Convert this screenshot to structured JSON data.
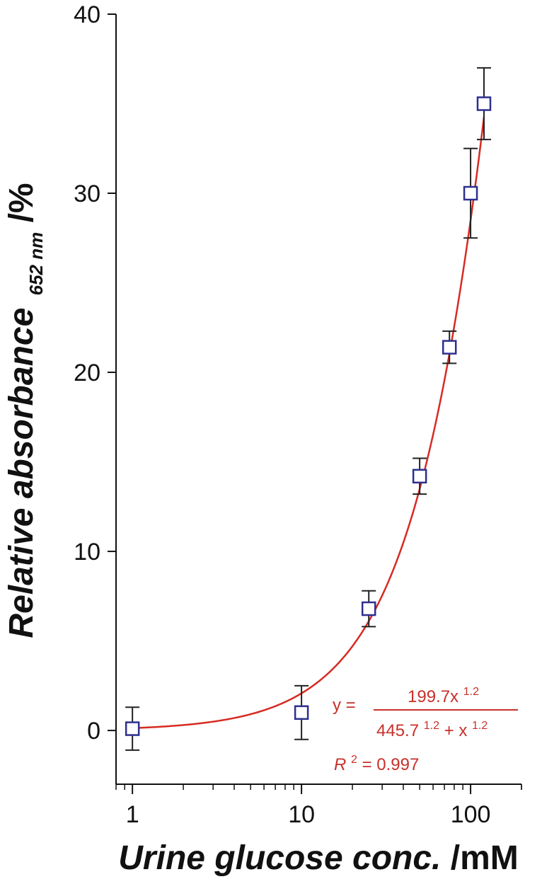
{
  "chart_data": {
    "type": "scatter",
    "x_scale": "log",
    "xlim": [
      0.8,
      200
    ],
    "ylim": [
      -3,
      40
    ],
    "x_ticks": [
      1,
      10,
      100
    ],
    "x_tick_labels": [
      "1",
      "10",
      "100"
    ],
    "y_ticks": [
      0,
      10,
      20,
      30,
      40
    ],
    "y_tick_labels": [
      "0",
      "10",
      "20",
      "30",
      "40"
    ],
    "ylabel": {
      "main": "Relative absorbance",
      "subscript": "652 nm",
      "unit": "/%"
    },
    "xlabel": {
      "main": "Urine glucose conc.",
      "unit": " /mM"
    },
    "series": [
      {
        "points": [
          {
            "x": 1,
            "y": 0.1,
            "err": 1.2
          },
          {
            "x": 10,
            "y": 1.0,
            "err": 1.5
          },
          {
            "x": 25,
            "y": 6.8,
            "err": 1.0
          },
          {
            "x": 50,
            "y": 14.2,
            "err": 1.0
          },
          {
            "x": 75,
            "y": 21.4,
            "err": 0.9
          },
          {
            "x": 100,
            "y": 30.0,
            "err": 2.5
          },
          {
            "x": 120,
            "y": 35.0,
            "err": 2.0
          }
        ],
        "marker": "open-square",
        "marker_color": "#2e2f8f",
        "errorbar_color": "#222222"
      }
    ],
    "fit": {
      "vmax": 199.7,
      "k": 445.7,
      "n": 1.2,
      "x_range": [
        1,
        120
      ],
      "color": "#d62b23"
    },
    "annotation": {
      "y_eq": "y =",
      "numerator": "199.7x",
      "numerator_exp": "1.2",
      "denominator_base": "445.7",
      "denominator_exp": "1.2",
      "denominator_plus": " + x",
      "denominator_exp2": "1.2",
      "r2_label": "R",
      "r2_sup": "2",
      "r2_value": " = 0.997"
    }
  }
}
